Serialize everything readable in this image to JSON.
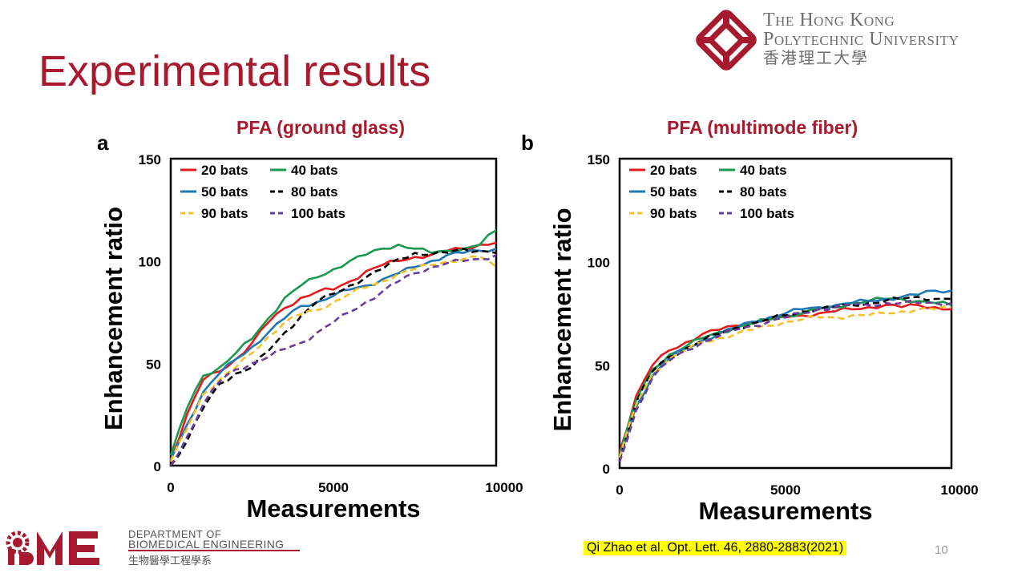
{
  "slide": {
    "title": "Experimental results",
    "page_number": "10",
    "citation": "Qi Zhao et al. Opt. Lett. 46, 2880-2883(2021)"
  },
  "university": {
    "name_line1": "The Hong Kong",
    "name_line2": "Polytechnic University",
    "name_zh": "香港理工大學",
    "color": "#a6192e"
  },
  "department": {
    "line1": "Department of",
    "line2": "BIOMEDICAL ENGINEERING",
    "line3": "生物醫學工程學系"
  },
  "colors": {
    "accent": "#a6192e",
    "20 bats": "#e41a1c",
    "40 bats": "#1a9850",
    "50 bats": "#1f78b4",
    "80 bats": "#000000",
    "90 bats": "#f6c02b",
    "100 bats": "#6a3d9a"
  },
  "chart_data": [
    {
      "type": "line",
      "panel": "a",
      "title": "PFA (ground glass)",
      "xlabel": "Measurements",
      "ylabel": "Enhancement ratio",
      "xlim": [
        0,
        10000
      ],
      "ylim": [
        0,
        150
      ],
      "x_ticks": [
        "0",
        "5000",
        "10000"
      ],
      "y_ticks": [
        "0",
        "50",
        "100",
        "150"
      ],
      "legend_position": "top-left",
      "grid": false,
      "x": [
        0,
        500,
        1000,
        1500,
        2000,
        2500,
        3000,
        3500,
        4000,
        4500,
        5000,
        5500,
        6000,
        6500,
        7000,
        7500,
        8000,
        8500,
        9000,
        9500,
        10000
      ],
      "series": [
        {
          "name": "20 bats",
          "style": "solid",
          "values": [
            3,
            25,
            42,
            46,
            52,
            60,
            70,
            77,
            82,
            85,
            86,
            90,
            95,
            98,
            100,
            102,
            103,
            105,
            106,
            108,
            109
          ]
        },
        {
          "name": "40 bats",
          "style": "solid",
          "values": [
            5,
            28,
            44,
            48,
            55,
            62,
            72,
            82,
            88,
            92,
            96,
            100,
            103,
            106,
            108,
            106,
            104,
            105,
            106,
            108,
            115
          ]
        },
        {
          "name": "50 bats",
          "style": "solid",
          "values": [
            3,
            20,
            36,
            45,
            52,
            58,
            65,
            72,
            78,
            80,
            83,
            86,
            88,
            91,
            94,
            97,
            100,
            103,
            104,
            105,
            106
          ]
        },
        {
          "name": "80 bats",
          "style": "dashed",
          "values": [
            0,
            12,
            28,
            40,
            45,
            48,
            56,
            65,
            73,
            80,
            84,
            88,
            92,
            96,
            101,
            104,
            103,
            104,
            106,
            105,
            104
          ]
        },
        {
          "name": "90 bats",
          "style": "dashed",
          "values": [
            2,
            18,
            35,
            42,
            48,
            55,
            63,
            70,
            74,
            76,
            80,
            84,
            87,
            90,
            94,
            96,
            98,
            100,
            101,
            102,
            97
          ]
        },
        {
          "name": "100 bats",
          "style": "dashed",
          "values": [
            0,
            14,
            30,
            41,
            47,
            50,
            53,
            57,
            60,
            65,
            70,
            75,
            80,
            85,
            90,
            94,
            97,
            99,
            100,
            101,
            103
          ]
        }
      ]
    },
    {
      "type": "line",
      "panel": "b",
      "title": "PFA (multimode fiber)",
      "xlabel": "Measurements",
      "ylabel": "Enhancement ratio",
      "xlim": [
        0,
        10000
      ],
      "ylim": [
        0,
        150
      ],
      "x_ticks": [
        "0",
        "5000",
        "10000"
      ],
      "y_ticks": [
        "0",
        "50",
        "100",
        "150"
      ],
      "legend_position": "top-left",
      "grid": false,
      "x": [
        0,
        500,
        1000,
        1500,
        2000,
        2500,
        3000,
        3500,
        4000,
        4500,
        5000,
        5500,
        6000,
        6500,
        7000,
        7500,
        8000,
        8500,
        9000,
        9500,
        10000
      ],
      "series": [
        {
          "name": "20 bats",
          "style": "solid",
          "values": [
            8,
            35,
            50,
            57,
            61,
            65,
            67,
            69,
            71,
            72,
            73,
            74,
            75,
            76,
            77,
            78,
            79,
            78,
            79,
            78,
            77
          ]
        },
        {
          "name": "40 bats",
          "style": "solid",
          "values": [
            6,
            33,
            48,
            55,
            59,
            63,
            66,
            68,
            70,
            72,
            74,
            75,
            77,
            78,
            80,
            81,
            82,
            82,
            81,
            80,
            79
          ]
        },
        {
          "name": "50 bats",
          "style": "solid",
          "values": [
            5,
            30,
            45,
            53,
            58,
            62,
            65,
            68,
            71,
            73,
            75,
            77,
            78,
            79,
            80,
            81,
            82,
            83,
            84,
            86,
            86
          ]
        },
        {
          "name": "80 bats",
          "style": "dashed",
          "values": [
            4,
            32,
            47,
            54,
            58,
            62,
            65,
            68,
            70,
            72,
            74,
            76,
            77,
            78,
            79,
            80,
            81,
            82,
            83,
            82,
            82
          ]
        },
        {
          "name": "90 bats",
          "style": "dashed",
          "values": [
            5,
            31,
            46,
            53,
            57,
            61,
            63,
            65,
            67,
            69,
            71,
            72,
            73,
            73,
            74,
            74,
            75,
            76,
            77,
            77,
            78
          ]
        },
        {
          "name": "100 bats",
          "style": "dashed",
          "values": [
            3,
            28,
            44,
            52,
            57,
            61,
            64,
            67,
            69,
            71,
            73,
            75,
            77,
            78,
            79,
            79,
            80,
            80,
            80,
            80,
            80
          ]
        }
      ]
    }
  ]
}
